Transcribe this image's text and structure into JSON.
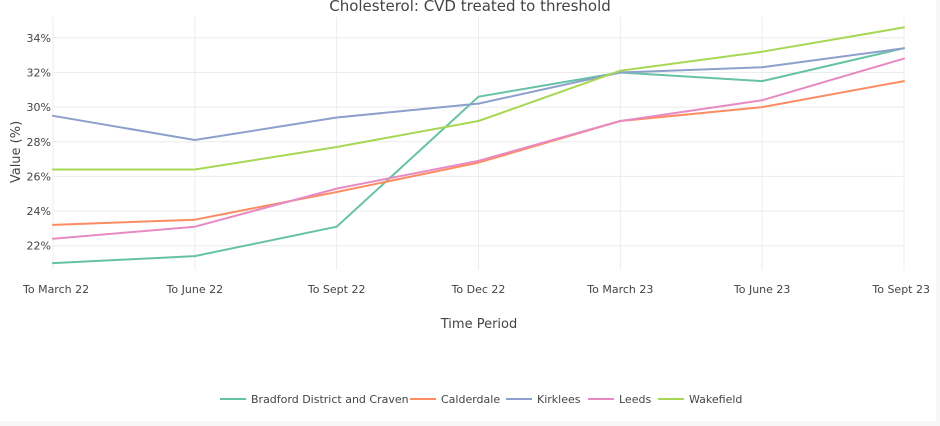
{
  "chart_data": {
    "type": "line",
    "title": "Cholesterol: CVD treated to threshold",
    "xlabel": "Time Period",
    "ylabel": "Value (%)",
    "categories": [
      "To March 22",
      "To June 22",
      "To Sept 22",
      "To Dec 22",
      "To March 23",
      "To June 23",
      "To Sept 23"
    ],
    "ylim": [
      20.6,
      35.2
    ],
    "yticks": [
      22,
      24,
      26,
      28,
      30,
      32,
      34
    ],
    "ytick_format": "%",
    "grid": true,
    "legend_position": "bottom",
    "series": [
      {
        "name": "Bradford District and Craven",
        "color": "#66c2a5",
        "values": [
          21.0,
          21.4,
          23.1,
          30.6,
          32.0,
          31.5,
          33.4
        ]
      },
      {
        "name": "Calderdale",
        "color": "#fc8d62",
        "values": [
          23.2,
          23.5,
          25.1,
          26.8,
          29.2,
          30.0,
          31.5
        ]
      },
      {
        "name": "Kirklees",
        "color": "#8da0cb",
        "values": [
          29.5,
          28.1,
          29.4,
          30.2,
          32.0,
          32.3,
          33.4
        ]
      },
      {
        "name": "Leeds",
        "color": "#e78ac3",
        "values": [
          22.4,
          23.1,
          25.3,
          26.9,
          29.2,
          30.4,
          32.8
        ]
      },
      {
        "name": "Wakefield",
        "color": "#a6d854",
        "values": [
          26.4,
          26.4,
          27.7,
          29.2,
          32.1,
          33.2,
          34.6
        ]
      }
    ]
  }
}
